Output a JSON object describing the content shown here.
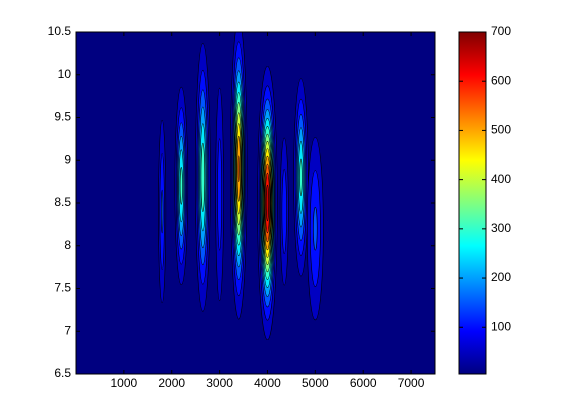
{
  "chart_data": {
    "type": "contour",
    "colormap": "jet",
    "xlim": [
      0,
      7500
    ],
    "xticks": [
      1000,
      2000,
      3000,
      4000,
      5000,
      6000,
      7000
    ],
    "ylim": [
      6.5,
      10.5
    ],
    "yticks": [
      6.5,
      7,
      7.5,
      8,
      8.5,
      9,
      9.5,
      10,
      10.5
    ],
    "clim": [
      5,
      700
    ],
    "cticks": [
      100,
      200,
      300,
      400,
      500,
      600,
      700
    ],
    "levels": [
      50,
      100,
      150,
      200,
      250,
      300,
      350,
      400,
      450,
      500,
      550,
      600,
      650
    ],
    "peaks": [
      {
        "x": 1800,
        "y": 8.4,
        "sx": 50,
        "sy": 0.7,
        "peak": 160
      },
      {
        "x": 2200,
        "y": 8.7,
        "sx": 70,
        "sy": 0.6,
        "peak": 320
      },
      {
        "x": 2650,
        "y": 8.8,
        "sx": 80,
        "sy": 0.8,
        "peak": 340
      },
      {
        "x": 3000,
        "y": 8.6,
        "sx": 60,
        "sy": 0.9,
        "peak": 130
      },
      {
        "x": 3400,
        "y": 8.9,
        "sx": 80,
        "sy": 0.8,
        "peak": 560
      },
      {
        "x": 4000,
        "y": 8.5,
        "sx": 90,
        "sy": 0.7,
        "peak": 680
      },
      {
        "x": 4350,
        "y": 8.4,
        "sx": 60,
        "sy": 0.6,
        "peak": 140
      },
      {
        "x": 4700,
        "y": 8.8,
        "sx": 80,
        "sy": 0.6,
        "peak": 320
      },
      {
        "x": 5000,
        "y": 8.2,
        "sx": 110,
        "sy": 0.7,
        "peak": 160
      }
    ]
  }
}
